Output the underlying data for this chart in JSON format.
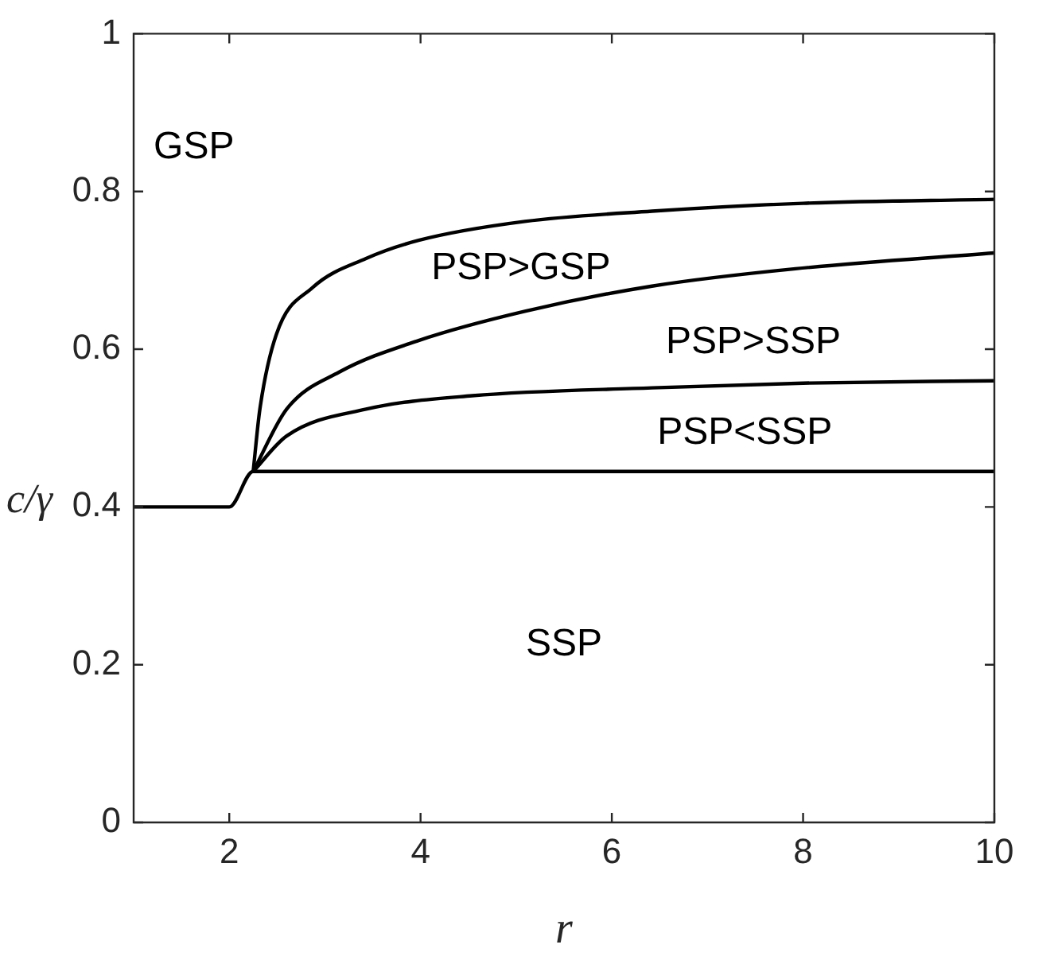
{
  "chart_data": {
    "type": "line",
    "xlabel": "r",
    "ylabel": "c/γ",
    "xlim": [
      1,
      10
    ],
    "xticks": [
      2,
      4,
      6,
      8,
      10
    ],
    "ylim": [
      0,
      1
    ],
    "yticks": [
      0,
      0.2,
      0.4,
      0.6,
      0.8,
      1
    ],
    "grid": false,
    "legend": false,
    "marker": "none",
    "line_style": "solid",
    "series": [
      {
        "color": "#000000",
        "x": [
          1,
          2,
          2.25,
          10
        ],
        "values": [
          0.4,
          0.4,
          0.445,
          0.445
        ]
      },
      {
        "color": "#000000",
        "x": [
          2.25,
          2.6,
          3.43,
          4.54,
          6.42,
          8,
          10
        ],
        "values": [
          0.445,
          0.49,
          0.524,
          0.541,
          0.551,
          0.557,
          0.56
        ]
      },
      {
        "color": "#000000",
        "x": [
          2.25,
          2.6,
          3.15,
          3.98,
          5.09,
          6.42,
          7.92,
          10
        ],
        "values": [
          0.445,
          0.524,
          0.571,
          0.611,
          0.648,
          0.68,
          0.702,
          0.722
        ]
      },
      {
        "color": "#000000",
        "x": [
          2.25,
          2.32,
          2.49,
          2.87,
          3.43,
          3.98,
          5.09,
          6.42,
          8,
          10
        ],
        "values": [
          0.445,
          0.524,
          0.618,
          0.678,
          0.715,
          0.738,
          0.762,
          0.775,
          0.785,
          0.79
        ]
      }
    ],
    "annotations": [
      "GSP",
      "PSP>GSP",
      "PSP>SSP",
      "PSP<SSP",
      "SSP"
    ]
  }
}
